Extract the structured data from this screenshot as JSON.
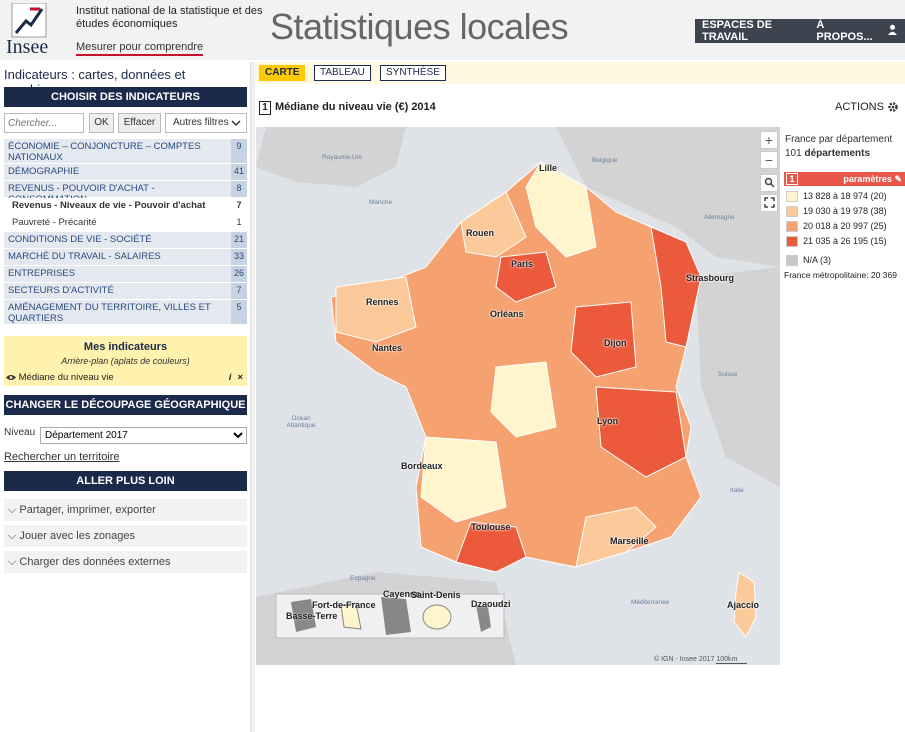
{
  "header": {
    "brand": "Insee",
    "institute": "Institut national de la statistique et des études économiques",
    "tagline": "Mesurer pour comprendre",
    "app_title": "Statistiques locales",
    "nav": [
      "ESPACES DE TRAVAIL",
      "À PROPOS..."
    ]
  },
  "sidebar": {
    "title": "Indicateurs : cartes, données et graphiques",
    "choose_btn": "CHOISIR DES INDICATEURS",
    "search_placeholder": "Chercher...",
    "ok": "OK",
    "clear": "Effacer",
    "filters": "Autres filtres",
    "categories": [
      {
        "label": "ÉCONOMIE – CONJONCTURE – COMPTES NATIONAUX",
        "count": "9"
      },
      {
        "label": "DÉMOGRAPHIE",
        "count": "41"
      },
      {
        "label": "REVENUS - POUVOIR D'ACHAT - CONSOMMATION",
        "count": "8"
      },
      {
        "label": "Revenus - Niveaux de vie - Pouvoir d'achat",
        "count": "7"
      },
      {
        "label": "Pauvreté - Précarité",
        "count": "1"
      },
      {
        "label": "CONDITIONS DE VIE - SOCIÉTÉ",
        "count": "21"
      },
      {
        "label": "MARCHÉ DU TRAVAIL - SALAIRES",
        "count": "33"
      },
      {
        "label": "ENTREPRISES",
        "count": "26"
      },
      {
        "label": "SECTEURS D'ACTIVITÉ",
        "count": "7"
      },
      {
        "label": "AMÉNAGEMENT DU TERRITOIRE, VILLES ET QUARTIERS",
        "count": "5"
      }
    ],
    "my_indicators": {
      "title": "Mes indicateurs",
      "subtitle": "Arrière-plan (aplats de couleurs)",
      "item": "Médiane du niveau vie",
      "info": "i",
      "close": "×"
    },
    "geo_btn": "CHANGER LE DÉCOUPAGE GÉOGRAPHIQUE",
    "niveau_label": "Niveau",
    "niveau_value": "Département 2017",
    "search_territory": "Rechercher un territoire",
    "further_btn": "ALLER PLUS LOIN",
    "accordions": [
      "Partager, imprimer, exporter",
      "Jouer avec les zonages",
      "Charger des données externes"
    ]
  },
  "tabs": [
    "CARTE",
    "TABLEAU",
    "SYNTHÈSE"
  ],
  "indicator": {
    "num": "1",
    "title": "Médiane du niveau vie (€) 2014",
    "actions": "ACTIONS"
  },
  "legend": {
    "line1": "France par département",
    "count": "101",
    "unit": "départements",
    "num": "1",
    "params": "paramètres",
    "classes": [
      {
        "label": "13 828 à 18 974 (20)",
        "color": "#fff5cc"
      },
      {
        "label": "19 030 à 19 978 (38)",
        "color": "#fcc99a"
      },
      {
        "label": "20 018 à 20 997 (25)",
        "color": "#f5a170"
      },
      {
        "label": "21 035 à 26 195 (15)",
        "color": "#ec5a3c"
      },
      {
        "label": "N/A (3)",
        "color": "#c8c8c8"
      }
    ],
    "france": "France métropolitaine: 20 369"
  },
  "map": {
    "zoom_in": "+",
    "zoom_out": "−",
    "cities": [
      "Lille",
      "Rouen",
      "Paris",
      "Strasbourg",
      "Rennes",
      "Orléans",
      "Nantes",
      "Dijon",
      "Lyon",
      "Bordeaux",
      "Toulouse",
      "Marseille",
      "Ajaccio"
    ],
    "seas": [
      "Royaume-Uni",
      "Manche",
      "Océan Atlantique",
      "Suisse",
      "Italie",
      "Espagne",
      "Méditerranée",
      "Belgique",
      "Allemagne"
    ],
    "overseas": [
      "Basse-Terre",
      "Fort-de-France",
      "Cayenne",
      "Saint-Denis",
      "Dzaoudzi"
    ],
    "attribution": "© IGN - Insee 2017",
    "scale": "100km"
  }
}
